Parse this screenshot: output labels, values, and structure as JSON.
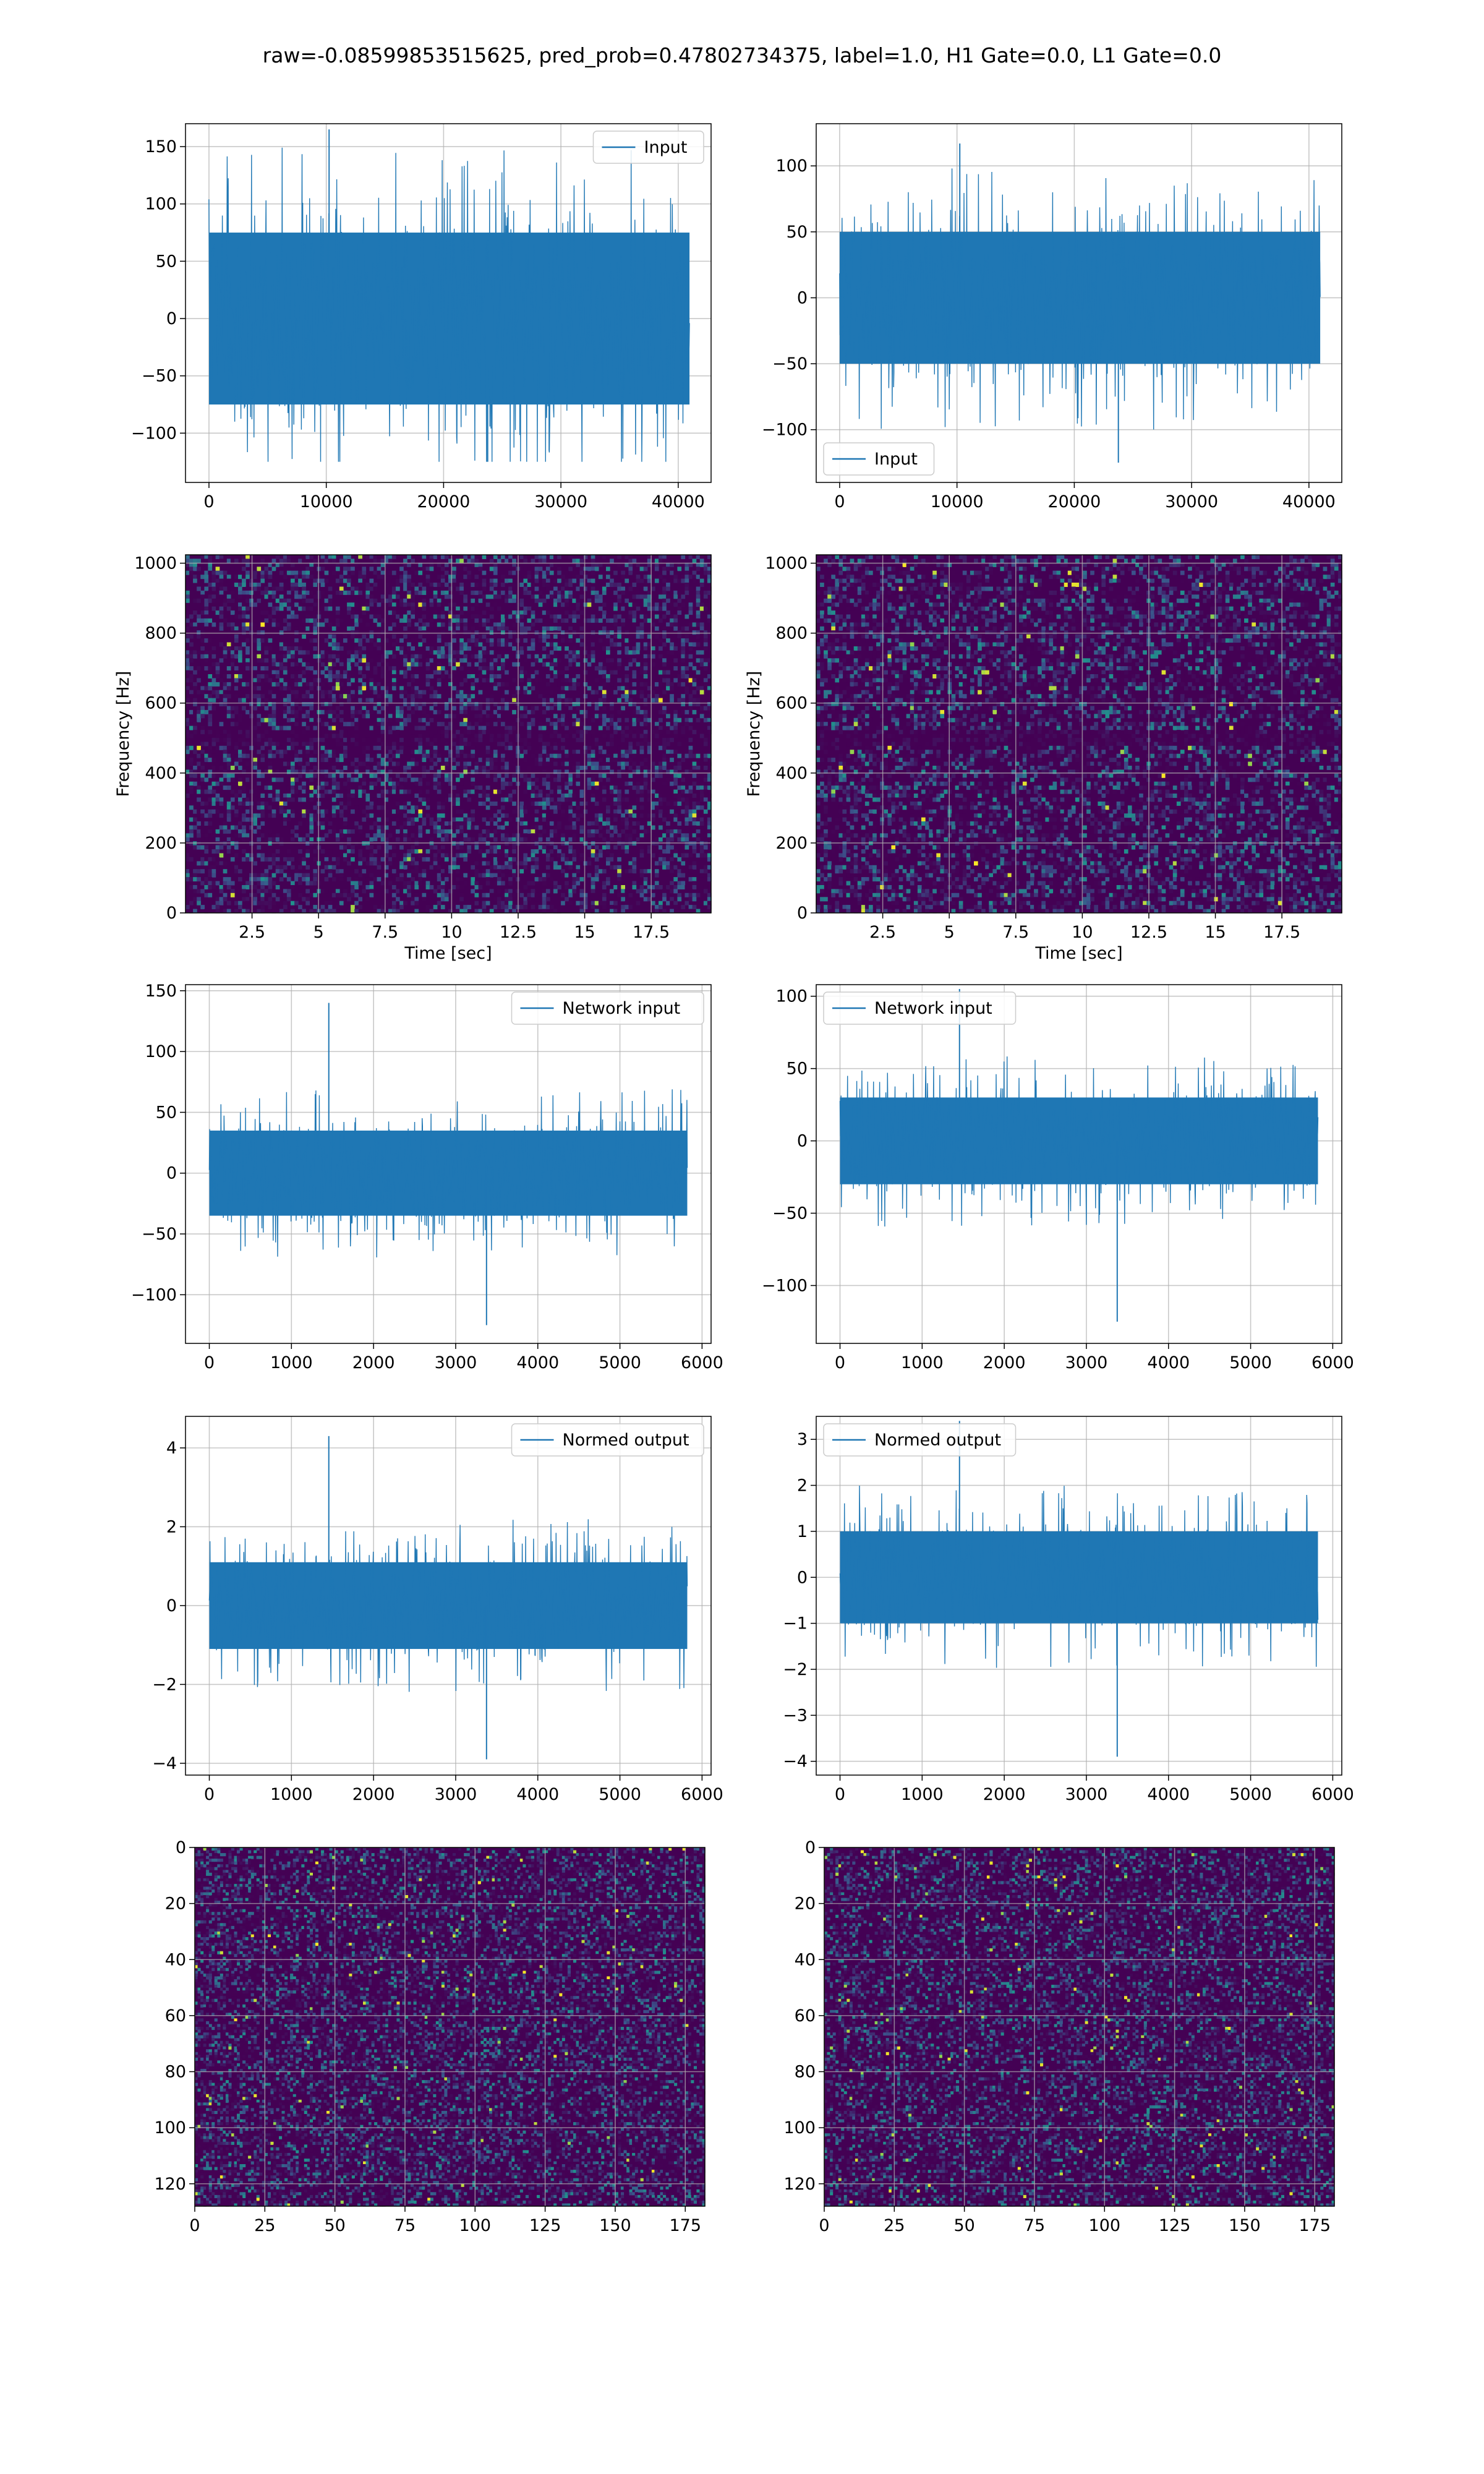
{
  "title": "raw=-0.08599853515625, pred_prob=0.47802734375, label=1.0, H1 Gate=0.0, L1 Gate=0.0",
  "colors": {
    "line": "#1f77b4",
    "grid": "#b0b0b0",
    "bg_low": "#440154",
    "bg_mid": "#3b528b",
    "bg_teal": "#21918c",
    "bg_green": "#5ec962",
    "bg_yellow": "#fde725"
  },
  "chart_data": [
    {
      "id": "r1c1",
      "type": "line",
      "legend": "Input",
      "legend_loc": "upper right",
      "xlim": [
        -2000,
        42800
      ],
      "ylim": [
        -143,
        170
      ],
      "xticks": [
        0,
        10000,
        20000,
        30000,
        40000
      ],
      "yticks": [
        -100,
        -50,
        0,
        50,
        100,
        150
      ],
      "x_range": [
        0,
        40960
      ],
      "band": 75,
      "peak_max": 165,
      "peak_min": -125,
      "grid": true
    },
    {
      "id": "r1c2",
      "type": "line",
      "legend": "Input",
      "legend_loc": "lower left",
      "xlim": [
        -2000,
        42800
      ],
      "ylim": [
        -140,
        132
      ],
      "xticks": [
        0,
        10000,
        20000,
        30000,
        40000
      ],
      "yticks": [
        -100,
        -50,
        0,
        50,
        100
      ],
      "x_range": [
        0,
        40960
      ],
      "band": 50,
      "peak_max": 117,
      "peak_min": -125,
      "grid": true
    },
    {
      "id": "r2c1",
      "type": "heatmap",
      "xlabel": "Time [sec]",
      "ylabel": "Frequency [Hz]",
      "xlim": [
        0,
        19.75
      ],
      "ylim": [
        0,
        1024
      ],
      "xticks": [
        2.5,
        5.0,
        7.5,
        10.0,
        12.5,
        15.0,
        17.5
      ],
      "yticks": [
        0,
        200,
        400,
        600,
        800,
        1000
      ],
      "dark_band_hz": 500,
      "grid": true
    },
    {
      "id": "r2c2",
      "type": "heatmap",
      "xlabel": "Time [sec]",
      "ylabel": "Frequency [Hz]",
      "xlim": [
        0,
        19.75
      ],
      "ylim": [
        0,
        1024
      ],
      "xticks": [
        2.5,
        5.0,
        7.5,
        10.0,
        12.5,
        15.0,
        17.5
      ],
      "yticks": [
        0,
        200,
        400,
        600,
        800,
        1000
      ],
      "dark_band_hz": 500,
      "grid": true
    },
    {
      "id": "r3c1",
      "type": "line",
      "legend": "Network input",
      "legend_loc": "upper right",
      "xlim": [
        -290,
        6110
      ],
      "ylim": [
        -140,
        155
      ],
      "xticks": [
        0,
        1000,
        2000,
        3000,
        4000,
        5000,
        6000
      ],
      "yticks": [
        -100,
        -50,
        0,
        50,
        100,
        150
      ],
      "x_range": [
        0,
        5820
      ],
      "band": 35,
      "peak_max": 140,
      "peak_min": -125,
      "grid": true
    },
    {
      "id": "r3c2",
      "type": "line",
      "legend": "Network input",
      "legend_loc": "upper left",
      "xlim": [
        -290,
        6110
      ],
      "ylim": [
        -140,
        108
      ],
      "xticks": [
        0,
        1000,
        2000,
        3000,
        4000,
        5000,
        6000
      ],
      "yticks": [
        -100,
        -50,
        0,
        50,
        100
      ],
      "x_range": [
        0,
        5820
      ],
      "band": 30,
      "peak_max": 105,
      "peak_min": -125,
      "grid": true
    },
    {
      "id": "r4c1",
      "type": "line",
      "legend": "Normed output",
      "legend_loc": "upper right",
      "xlim": [
        -290,
        6110
      ],
      "ylim": [
        -4.3,
        4.8
      ],
      "xticks": [
        0,
        1000,
        2000,
        3000,
        4000,
        5000,
        6000
      ],
      "yticks": [
        -4,
        -2,
        0,
        2,
        4
      ],
      "x_range": [
        0,
        5820
      ],
      "band": 1.1,
      "peak_max": 4.3,
      "peak_min": -3.9,
      "grid": true
    },
    {
      "id": "r4c2",
      "type": "line",
      "legend": "Normed output",
      "legend_loc": "upper left",
      "xlim": [
        -290,
        6110
      ],
      "ylim": [
        -4.3,
        3.5
      ],
      "xticks": [
        0,
        1000,
        2000,
        3000,
        4000,
        5000,
        6000
      ],
      "yticks": [
        -4,
        -3,
        -2,
        -1,
        0,
        1,
        2,
        3
      ],
      "x_range": [
        0,
        5820
      ],
      "band": 1.0,
      "peak_max": 3.4,
      "peak_min": -3.9,
      "grid": true
    },
    {
      "id": "r5c1",
      "type": "heatmap",
      "xlim": [
        0,
        182
      ],
      "ylim": [
        128,
        0
      ],
      "inverted_y": true,
      "xticks": [
        0,
        25,
        50,
        75,
        100,
        125,
        150,
        175
      ],
      "yticks": [
        0,
        20,
        40,
        60,
        80,
        100,
        120
      ],
      "grid": true
    },
    {
      "id": "r5c2",
      "type": "heatmap",
      "xlim": [
        0,
        182
      ],
      "ylim": [
        128,
        0
      ],
      "inverted_y": true,
      "xticks": [
        0,
        25,
        50,
        75,
        100,
        125,
        150,
        175
      ],
      "yticks": [
        0,
        20,
        40,
        60,
        80,
        100,
        120
      ],
      "grid": true
    }
  ]
}
